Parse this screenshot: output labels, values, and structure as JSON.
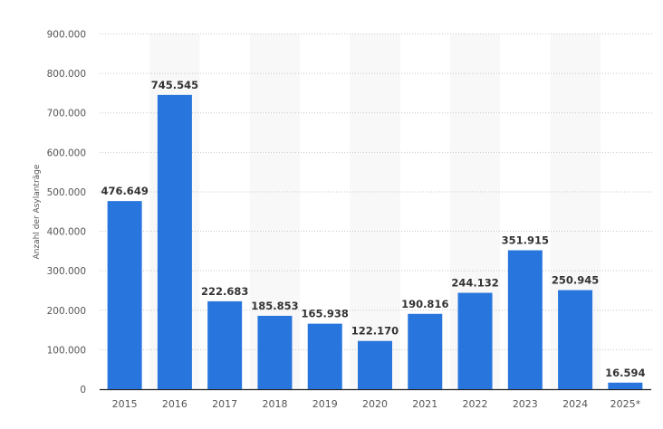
{
  "chart_data": {
    "type": "bar",
    "title": "",
    "xlabel": "",
    "ylabel": "Anzahl der Asylanträge",
    "categories": [
      "2015",
      "2016",
      "2017",
      "2018",
      "2019",
      "2020",
      "2021",
      "2022",
      "2023",
      "2024",
      "2025*"
    ],
    "values": [
      476649,
      745545,
      222683,
      185853,
      165938,
      122170,
      190816,
      244132,
      351915,
      250945,
      16594
    ],
    "value_labels": [
      "476.649",
      "745.545",
      "222.683",
      "185.853",
      "165.938",
      "122.170",
      "190.816",
      "244.132",
      "351.915",
      "250.945",
      "16.594"
    ],
    "ylim": [
      0,
      900000
    ],
    "yticks": [
      0,
      100000,
      200000,
      300000,
      400000,
      500000,
      600000,
      700000,
      800000,
      900000
    ],
    "ytick_labels": [
      "0",
      "100.000",
      "200.000",
      "300.000",
      "400.000",
      "500.000",
      "600.000",
      "700.000",
      "800.000",
      "900.000"
    ],
    "grid": true,
    "colors": {
      "bar": "#2876dd",
      "band": "#f8f8f8",
      "grid": "#c8c8c8",
      "axis": "#222222"
    }
  }
}
